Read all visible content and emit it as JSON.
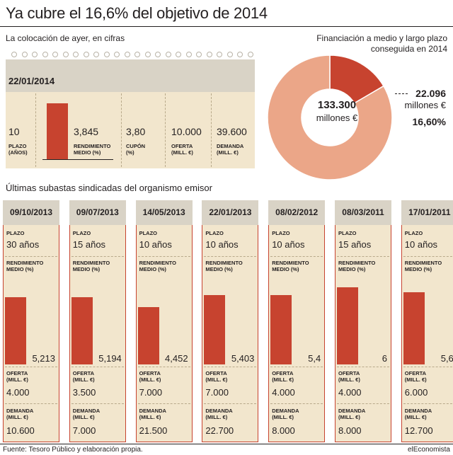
{
  "title": "Ya cubre el 16,6% del objetivo de 2014",
  "left_subtitle": "La colocación de ayer, en cifras",
  "current": {
    "date": "22/01/2014",
    "plazo": "10",
    "plazo_label": "PLAZO (AÑOS)",
    "rendimiento": "3,845",
    "rendimiento_label": "RENDIMIENTO MEDIO (%)",
    "cupon": "3,80",
    "cupon_label": "CUPÓN (%)",
    "oferta": "10.000",
    "oferta_label": "OFERTA (MILL. €)",
    "demanda": "39.600",
    "demanda_label": "DEMANDA (MILL. €)"
  },
  "donut": {
    "subtitle_line1": "Financiación a medio y largo plazo",
    "subtitle_line2": "conseguida en 2014",
    "center_value": "133.300",
    "center_unit": "millones €",
    "slice_value": "22.096",
    "slice_unit": "millones €",
    "slice_pct": "16,60%",
    "colors": {
      "slice": "#c7432f",
      "rest": "#eba688"
    }
  },
  "history_title": "Últimas subastas sindicadas del organismo emisor",
  "labels": {
    "plazo": "PLAZO",
    "rend1": "RENDIMIENTO",
    "rend2": "MEDIO (%)",
    "of1": "OFERTA",
    "of2": "(MILL. €)",
    "dem1": "DEMANDA",
    "dem2": "(MILL. €)"
  },
  "chart_data": {
    "type": "bar",
    "categories": [
      "09/10/2013",
      "09/07/2013",
      "14/05/2013",
      "22/01/2013",
      "08/02/2012",
      "08/03/2011",
      "17/01/2011"
    ],
    "series": [
      {
        "name": "RENDIMIENTO MEDIO (%)",
        "values": [
          5.213,
          5.194,
          4.452,
          5.403,
          5.4,
          6,
          5.6
        ]
      }
    ],
    "value_labels": [
      "5,213",
      "5,194",
      "4,452",
      "5,403",
      "5,4",
      "6",
      "5,6"
    ],
    "plazo": [
      "30 años",
      "15 años",
      "10 años",
      "10 años",
      "10 años",
      "15 años",
      "10 años"
    ],
    "oferta": [
      "4.000",
      "3.500",
      "7.000",
      "7.000",
      "4.000",
      "4.000",
      "6.000"
    ],
    "demanda": [
      "10.600",
      "7.000",
      "21.500",
      "22.700",
      "8.000",
      "8.000",
      "12.700"
    ],
    "current_value": 3.845,
    "donut_values": [
      22.096,
      133.3
    ]
  },
  "footer": {
    "source": "Fuente: Tesoro Público y elaboración propia.",
    "brand": "elEconomista"
  }
}
